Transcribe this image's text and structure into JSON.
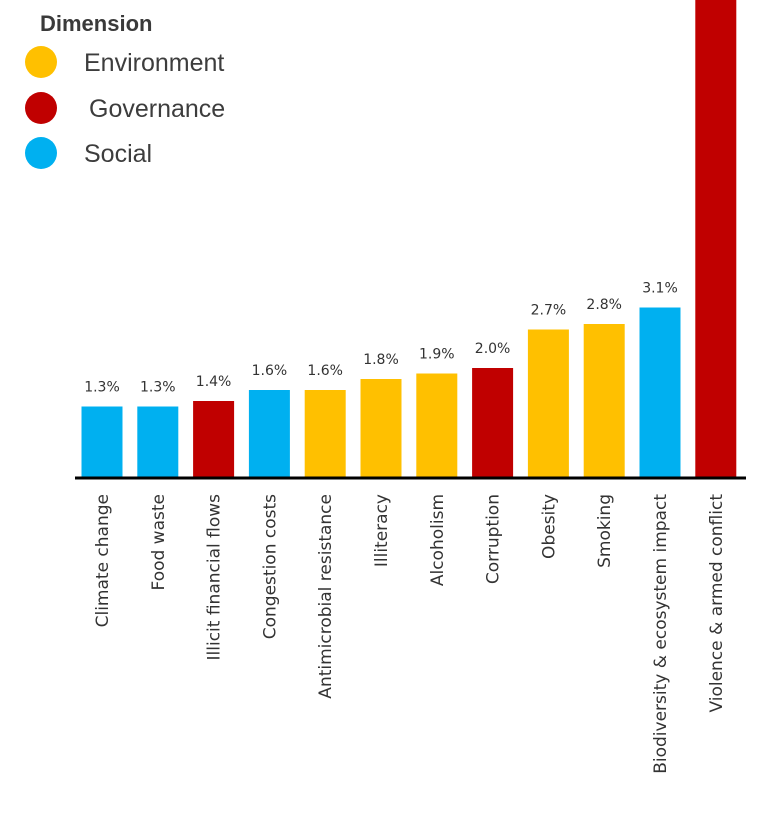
{
  "legend": {
    "title": "Dimension",
    "items": [
      {
        "label": "Environment",
        "color": "#FFC000"
      },
      {
        "label": "Governance",
        "color": "#C00000"
      },
      {
        "label": "Social",
        "color": "#00B0F0"
      }
    ]
  },
  "chart_data": {
    "type": "bar",
    "categories": [
      "Climate change",
      "Food waste",
      "Illicit financial flows",
      "Congestion costs",
      "Antimicrobial resistance",
      "Illiteracy",
      "Alcoholism",
      "Corruption",
      "Obesity",
      "Smoking",
      "Biodiversity & ecosystem impact",
      "Violence & armed conflict"
    ],
    "values": [
      1.3,
      1.3,
      1.4,
      1.6,
      1.6,
      1.8,
      1.9,
      2.0,
      2.7,
      2.8,
      3.1,
      null
    ],
    "value_labels": [
      "1.3%",
      "1.3%",
      "1.4%",
      "1.6%",
      "1.6%",
      "1.8%",
      "1.9%",
      "2.0%",
      "2.7%",
      "2.8%",
      "3.1%",
      ""
    ],
    "dimensions": [
      "Social",
      "Social",
      "Governance",
      "Social",
      "Environment",
      "Environment",
      "Environment",
      "Governance",
      "Environment",
      "Environment",
      "Social",
      "Governance"
    ],
    "ylim": [
      0,
      8.5
    ],
    "legend_position": "top-left",
    "grid": false
  }
}
